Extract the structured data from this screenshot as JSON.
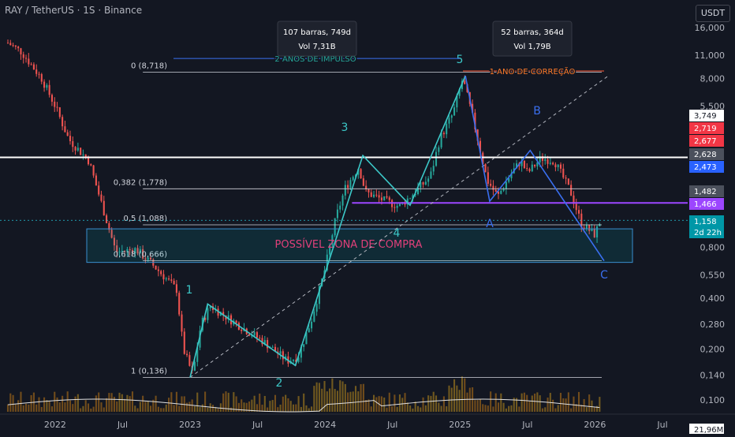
{
  "header": {
    "title": "RAY / TetherUS · 1S · Binance",
    "currency": "USDT"
  },
  "colors": {
    "bg": "#131722",
    "up": "#26a69a",
    "down": "#ef5350",
    "wave": "#3cc8c8",
    "wave_b": "#3a6ff0",
    "fib": "#d1d4dc",
    "zone": "#00c0d0",
    "zone_text": "#e0407a",
    "purple": "#9c46ff",
    "impulse": "#26a69a",
    "correction": "#ff7a29"
  },
  "chart_data": {
    "type": "candlestick",
    "scale": "log",
    "title": "RAY / TetherUS · 1S · Binance",
    "y_ticks": [
      "16,000",
      "11,000",
      "8,000",
      "5,500",
      "3,749",
      "2,719",
      "2,677",
      "2,628",
      "2,473",
      "1,482",
      "1,466",
      "1,158",
      "0,800",
      "0,550",
      "0,400",
      "0,280",
      "0,200",
      "0,140",
      "0,100"
    ],
    "x_ticks": [
      "2022",
      "Jul",
      "2023",
      "Jul",
      "2024",
      "Jul",
      "2025",
      "Jul",
      "2026",
      "Jul"
    ],
    "price_labels": [
      {
        "text": "3,749",
        "style": "white"
      },
      {
        "text": "2,719",
        "style": "red"
      },
      {
        "text": "2,677",
        "style": "red"
      },
      {
        "text": "2,628",
        "style": "gray"
      },
      {
        "text": "2,473",
        "style": "blue"
      },
      {
        "text": "1,482",
        "style": "gray"
      },
      {
        "text": "1,466",
        "style": "purple"
      },
      {
        "text": "1,158",
        "style": "teal"
      },
      {
        "text": "2d 22h",
        "style": "teal"
      },
      {
        "text": "21,96M",
        "style": "white"
      }
    ],
    "fib_levels": [
      {
        "label": "0 (8,718)",
        "value": 8.718
      },
      {
        "label": "0,382 (1,778)",
        "value": 1.778
      },
      {
        "label": "0,5 (1,088)",
        "value": 1.088
      },
      {
        "label": "0,618 (0,666)",
        "value": 0.666
      },
      {
        "label": "1 (0,136)",
        "value": 0.136
      }
    ],
    "wave_labels": [
      "1",
      "2",
      "3",
      "4",
      "5",
      "A",
      "B",
      "C"
    ],
    "annotations": {
      "box1_line1": "107 barras, 749d",
      "box1_line2": "Vol 7,31B",
      "box2_line1": "52 barras, 364d",
      "box2_line2": "Vol 1,79B",
      "impulse": "2 ANOS DE IMPULSO",
      "correction": "1 ANO DE CORREÇÃO",
      "zone": "POSSÍVEL ZONA DE COMPRA"
    },
    "horizontal_lines": [
      3.749,
      1.482,
      1.466,
      1.158
    ],
    "last_price": 1.158,
    "volume_label": "21,96M"
  }
}
